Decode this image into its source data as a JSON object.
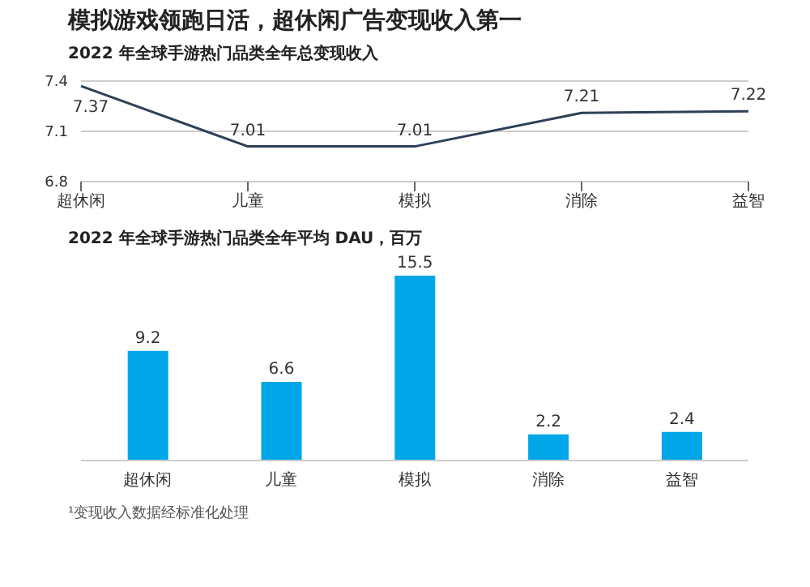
{
  "chart_data": [
    {
      "type": "line",
      "title": "模拟游戏领跑日活，超休闲广告变现收入第一",
      "subtitle": "2022 年全球手游热门品类全年总变现收入",
      "categories": [
        "超休闲",
        "儿童",
        "模拟",
        "消除",
        "益智"
      ],
      "series": [
        {
          "color": "#2e4057",
          "values": [
            7.37,
            7.01,
            7.01,
            7.21,
            7.22
          ]
        }
      ],
      "ylim": [
        6.8,
        7.4
      ],
      "yticks": [
        6.8,
        7.1,
        7.4
      ],
      "grid": "y",
      "data_labels": true,
      "marker": "none",
      "line_style": "solid",
      "legend": false
    },
    {
      "type": "bar",
      "title": "2022 年全球手游热门品类全年平均 DAU，百万",
      "categories": [
        "超休闲",
        "儿童",
        "模拟",
        "消除",
        "益智"
      ],
      "series": [
        {
          "color": "#00a6e8",
          "values": [
            9.2,
            6.6,
            15.5,
            2.2,
            2.4
          ]
        }
      ],
      "data_labels": true,
      "legend": false,
      "tick_labels": "x",
      "annotations": [
        "¹变现收入数据经标准化处理"
      ]
    }
  ]
}
